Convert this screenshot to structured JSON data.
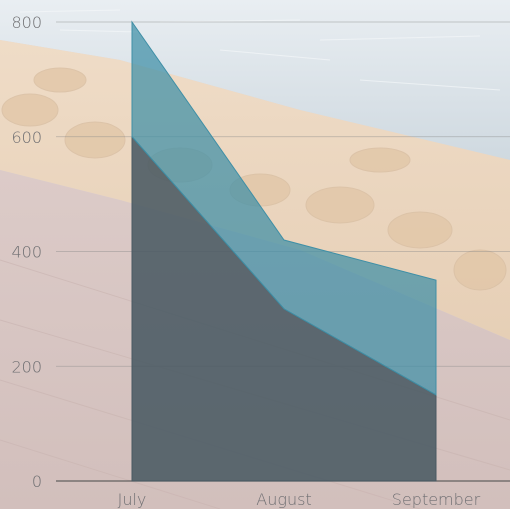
{
  "chart_data": {
    "type": "area",
    "stacked": true,
    "categories": [
      "July",
      "August",
      "September"
    ],
    "series": [
      {
        "values": [
          600,
          300,
          150
        ],
        "color": "#4a5a63"
      },
      {
        "values": [
          200,
          120,
          200
        ],
        "color": "#3f8fa6"
      }
    ],
    "ylim": [
      0,
      800
    ],
    "yticks": [
      0,
      200,
      400,
      600,
      800
    ],
    "grid": true,
    "background": "photo of a stone harbor wall beside water with a brick-paved walkway"
  },
  "colors": {
    "tick_label": "#6f6f72",
    "grid": "#8a8a8a",
    "axis": "#555555"
  }
}
